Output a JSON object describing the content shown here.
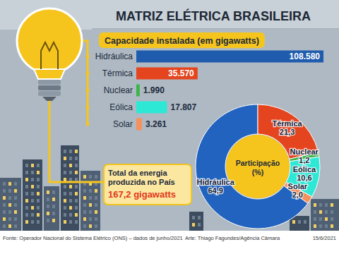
{
  "header": {
    "title": "MATRIZ ELÉTRICA BRASILEIRA"
  },
  "chart_data": [
    {
      "type": "bar",
      "title": "Capacidade instalada (em gigawatts)",
      "orientation": "horizontal",
      "categories": [
        "Hidráulica",
        "Térmica",
        "Nuclear",
        "Eólica",
        "Solar"
      ],
      "values": [
        108580,
        35570,
        1990,
        17807,
        3261
      ],
      "value_labels": [
        "108.580",
        "35.570",
        "1.990",
        "17.807",
        "3.261"
      ],
      "colors": [
        "#1f5cad",
        "#e4451f",
        "#3cb54a",
        "#2ee8d6",
        "#f4915e"
      ],
      "data_labels": true
    },
    {
      "type": "donut",
      "title": "Participação",
      "subtitle": "(%)",
      "categories": [
        "Hidráulica",
        "Térmica",
        "Nuclear",
        "Eólica",
        "Solar"
      ],
      "values": [
        64.9,
        21.3,
        1.2,
        10.6,
        2.0
      ],
      "value_labels": [
        "64,9",
        "21,3",
        "1,2",
        "10,6",
        "2,0"
      ],
      "colors": [
        "#2163be",
        "#e4451f",
        "#3cb54a",
        "#2ee8d6",
        "#f4915e"
      ],
      "data_labels": true
    }
  ],
  "total": {
    "label": "Total da energia produzida no País",
    "text": "167,2 gigawatts"
  },
  "footer": {
    "source": "Fonte: Operador Nacional do Sistema Elétrico (ONS) – dados de junho/2021",
    "credit": "Arte: Thiago Fagundes/Agência Câmara",
    "date": "15/6/2021"
  }
}
